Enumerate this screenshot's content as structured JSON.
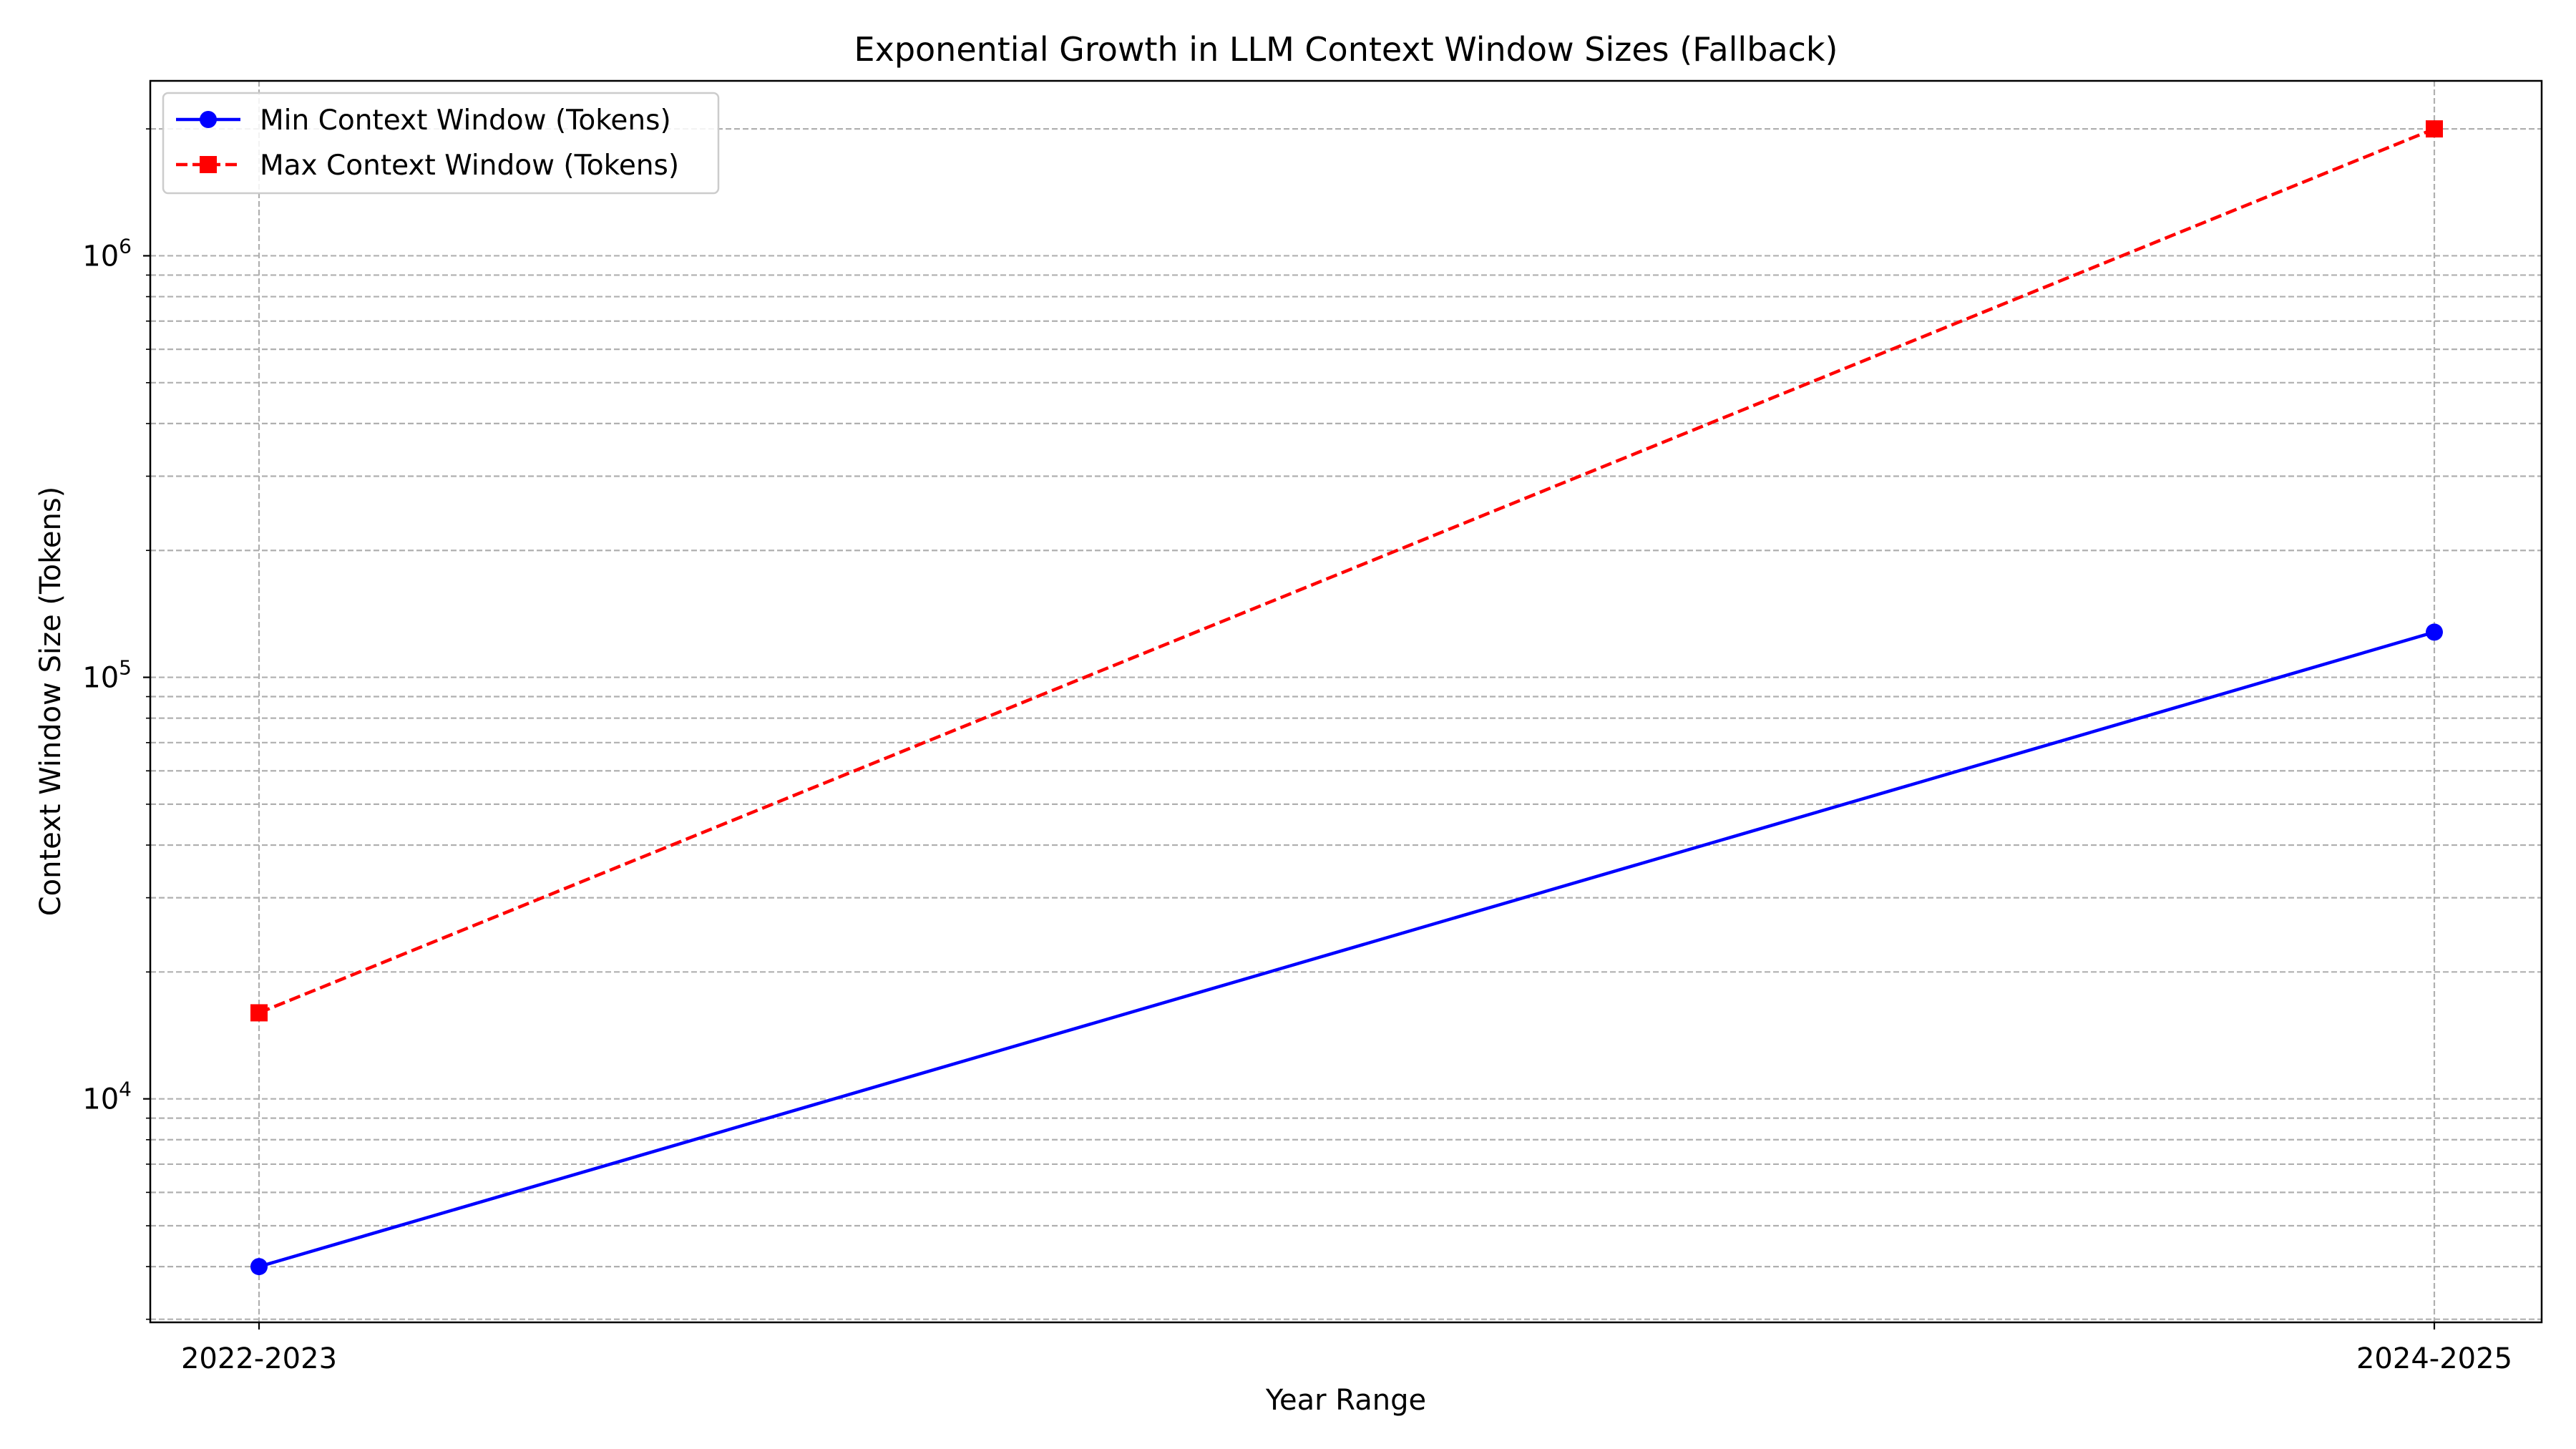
{
  "chart_data": {
    "type": "line",
    "title": "Exponential Growth in LLM Context Window Sizes (Fallback)",
    "xlabel": "Year Range",
    "ylabel": "Context Window Size (Tokens)",
    "categories": [
      "2022-2023",
      "2024-2025"
    ],
    "yscale": "log",
    "ylim": [
      2950,
      2600000
    ],
    "y_major_ticks": [
      {
        "value": 10000,
        "base": "10",
        "exp": "4"
      },
      {
        "value": 100000,
        "base": "10",
        "exp": "5"
      },
      {
        "value": 1000000,
        "base": "10",
        "exp": "6"
      }
    ],
    "grid": true,
    "grid_style": "dashed",
    "legend_position": "upper left",
    "series": [
      {
        "name": "Min Context Window (Tokens)",
        "values": [
          4000,
          128000
        ],
        "color": "#0000ff",
        "line_style": "solid",
        "marker": "circle"
      },
      {
        "name": "Max Context Window (Tokens)",
        "values": [
          16000,
          2000000
        ],
        "color": "#ff0000",
        "line_style": "dashed",
        "marker": "square"
      }
    ]
  }
}
